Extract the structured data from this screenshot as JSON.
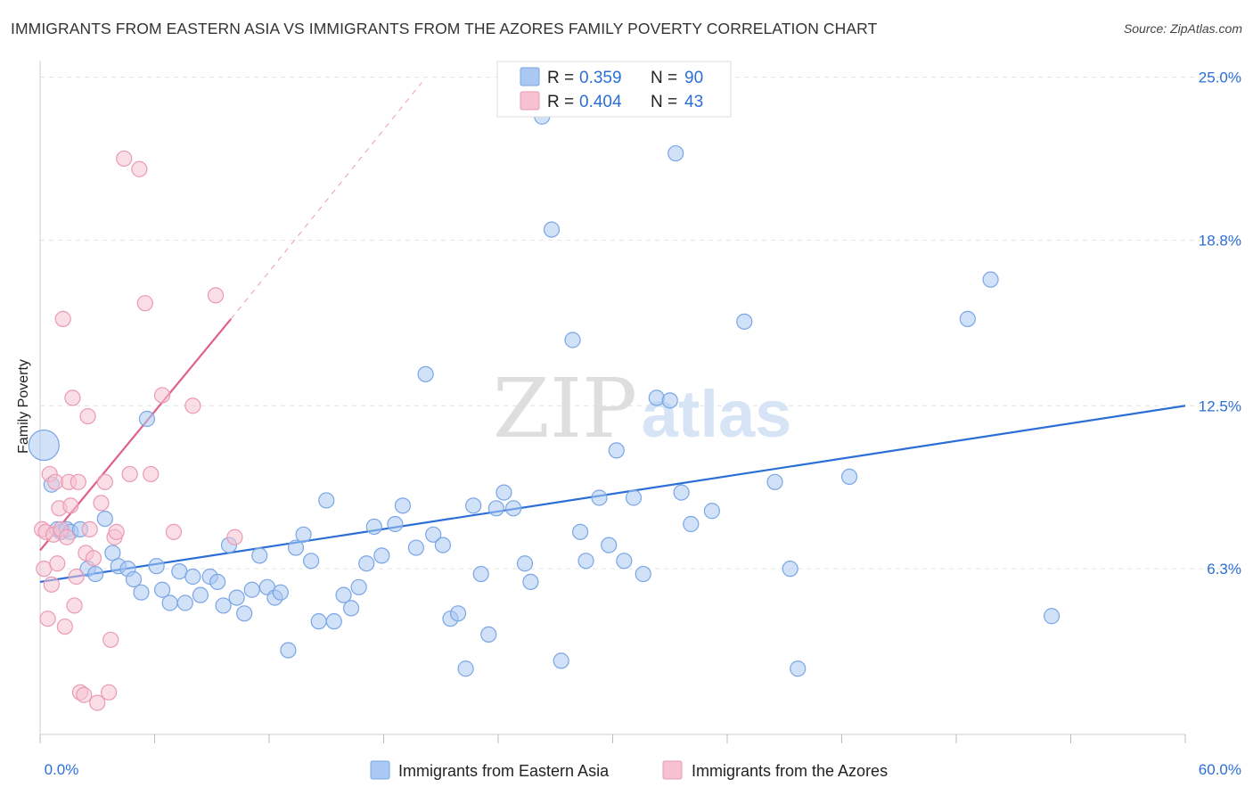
{
  "header": {
    "title": "IMMIGRANTS FROM EASTERN ASIA VS IMMIGRANTS FROM THE AZORES FAMILY POVERTY CORRELATION CHART",
    "source": "Source: ZipAtlas.com"
  },
  "watermark": {
    "zip": "ZIP",
    "atlas": "atlas"
  },
  "chart_data": {
    "type": "scatter",
    "title": "IMMIGRANTS FROM EASTERN ASIA VS IMMIGRANTS FROM THE AZORES FAMILY POVERTY CORRELATION CHART",
    "xlabel": "",
    "ylabel": "Family Poverty",
    "xlim": [
      0,
      60
    ],
    "ylim": [
      0,
      26
    ],
    "x_tick_labels": [
      "0.0%",
      "60.0%"
    ],
    "y_ticks": [
      6.3,
      12.5,
      18.8,
      25.0
    ],
    "y_tick_labels": [
      "6.3%",
      "12.5%",
      "18.8%",
      "25.0%"
    ],
    "grid": "horizontal dashed",
    "legend_position": "top-center",
    "stats": [
      {
        "r_label": "R =",
        "r_value": "0.359",
        "n_label": "N =",
        "n_value": "90"
      },
      {
        "r_label": "R =",
        "r_value": "0.404",
        "n_label": "N =",
        "n_value": "43"
      }
    ],
    "series": [
      {
        "name": "Immigrants from Eastern Asia",
        "color": "#7aa6e6",
        "fill": "#aac8f2",
        "trend_color": "#2b6fd6",
        "trend": {
          "x0": 0,
          "y0": 5.8,
          "x1": 60,
          "y1": 12.5
        },
        "points": [
          [
            0.2,
            11.0
          ],
          [
            0.6,
            9.5
          ],
          [
            0.9,
            7.8
          ],
          [
            1.1,
            7.7
          ],
          [
            1.4,
            7.8
          ],
          [
            1.6,
            7.7
          ],
          [
            2.1,
            7.8
          ],
          [
            2.5,
            6.3
          ],
          [
            2.9,
            6.1
          ],
          [
            3.4,
            8.2
          ],
          [
            3.8,
            6.9
          ],
          [
            4.1,
            6.4
          ],
          [
            4.6,
            6.3
          ],
          [
            4.9,
            5.9
          ],
          [
            5.3,
            5.4
          ],
          [
            5.6,
            12.0
          ],
          [
            6.1,
            6.4
          ],
          [
            6.4,
            5.5
          ],
          [
            6.8,
            5.0
          ],
          [
            7.3,
            6.2
          ],
          [
            7.6,
            5.0
          ],
          [
            8.0,
            6.0
          ],
          [
            8.4,
            5.3
          ],
          [
            8.9,
            6.0
          ],
          [
            9.3,
            5.8
          ],
          [
            9.6,
            4.9
          ],
          [
            9.9,
            7.2
          ],
          [
            10.3,
            5.2
          ],
          [
            10.7,
            4.6
          ],
          [
            11.1,
            5.5
          ],
          [
            11.5,
            6.8
          ],
          [
            11.9,
            5.6
          ],
          [
            12.3,
            5.2
          ],
          [
            12.6,
            5.4
          ],
          [
            13.0,
            3.2
          ],
          [
            13.4,
            7.1
          ],
          [
            13.8,
            7.6
          ],
          [
            14.2,
            6.6
          ],
          [
            14.6,
            4.3
          ],
          [
            15.0,
            8.9
          ],
          [
            15.4,
            4.3
          ],
          [
            15.9,
            5.3
          ],
          [
            16.3,
            4.8
          ],
          [
            16.7,
            5.6
          ],
          [
            17.1,
            6.5
          ],
          [
            17.5,
            7.9
          ],
          [
            17.9,
            6.8
          ],
          [
            18.6,
            8.0
          ],
          [
            19.0,
            8.7
          ],
          [
            19.7,
            7.1
          ],
          [
            20.2,
            13.7
          ],
          [
            20.6,
            7.6
          ],
          [
            21.1,
            7.2
          ],
          [
            21.5,
            4.4
          ],
          [
            21.9,
            4.6
          ],
          [
            22.3,
            2.5
          ],
          [
            22.7,
            8.7
          ],
          [
            23.1,
            6.1
          ],
          [
            23.5,
            3.8
          ],
          [
            23.9,
            8.6
          ],
          [
            24.3,
            9.2
          ],
          [
            24.8,
            8.6
          ],
          [
            25.4,
            6.5
          ],
          [
            25.7,
            5.8
          ],
          [
            26.3,
            23.5
          ],
          [
            26.8,
            19.2
          ],
          [
            27.3,
            2.8
          ],
          [
            27.9,
            15.0
          ],
          [
            28.3,
            7.7
          ],
          [
            28.6,
            6.6
          ],
          [
            29.3,
            9.0
          ],
          [
            29.8,
            7.2
          ],
          [
            30.2,
            10.8
          ],
          [
            30.6,
            6.6
          ],
          [
            31.1,
            9.0
          ],
          [
            31.6,
            6.1
          ],
          [
            32.3,
            12.8
          ],
          [
            33.0,
            12.7
          ],
          [
            33.3,
            22.1
          ],
          [
            33.6,
            9.2
          ],
          [
            34.1,
            8.0
          ],
          [
            35.2,
            8.5
          ],
          [
            36.9,
            15.7
          ],
          [
            38.5,
            9.6
          ],
          [
            39.3,
            6.3
          ],
          [
            39.7,
            2.5
          ],
          [
            42.4,
            9.8
          ],
          [
            48.6,
            15.8
          ],
          [
            49.8,
            17.3
          ],
          [
            53.0,
            4.5
          ]
        ]
      },
      {
        "name": "Immigrants from the Azores",
        "color": "#eb9ab3",
        "fill": "#f6c2d2",
        "trend_color": "#e0608c",
        "trend": {
          "x0": 0,
          "y0": 7.0,
          "x1": 10,
          "y1": 15.8
        },
        "trend_extension": {
          "x1": 20,
          "y1": 24.8
        },
        "points": [
          [
            0.1,
            7.8
          ],
          [
            0.2,
            6.3
          ],
          [
            0.3,
            7.7
          ],
          [
            0.4,
            4.4
          ],
          [
            0.5,
            9.9
          ],
          [
            0.6,
            5.7
          ],
          [
            0.7,
            7.6
          ],
          [
            0.8,
            9.6
          ],
          [
            0.9,
            6.5
          ],
          [
            1.0,
            8.6
          ],
          [
            1.1,
            7.8
          ],
          [
            1.2,
            15.8
          ],
          [
            1.3,
            4.1
          ],
          [
            1.4,
            7.5
          ],
          [
            1.5,
            9.6
          ],
          [
            1.6,
            8.7
          ],
          [
            1.7,
            12.8
          ],
          [
            1.8,
            4.9
          ],
          [
            1.9,
            6.0
          ],
          [
            2.0,
            9.6
          ],
          [
            2.1,
            1.6
          ],
          [
            2.3,
            1.5
          ],
          [
            2.4,
            6.9
          ],
          [
            2.5,
            12.1
          ],
          [
            2.6,
            7.8
          ],
          [
            2.8,
            6.7
          ],
          [
            3.0,
            1.2
          ],
          [
            3.2,
            8.8
          ],
          [
            3.4,
            9.6
          ],
          [
            3.6,
            1.6
          ],
          [
            3.7,
            3.6
          ],
          [
            3.9,
            7.5
          ],
          [
            4.0,
            7.7
          ],
          [
            4.4,
            21.9
          ],
          [
            4.7,
            9.9
          ],
          [
            5.2,
            21.5
          ],
          [
            5.5,
            16.4
          ],
          [
            5.8,
            9.9
          ],
          [
            6.4,
            12.9
          ],
          [
            7.0,
            7.7
          ],
          [
            8.0,
            12.5
          ],
          [
            9.2,
            16.7
          ],
          [
            10.2,
            7.5
          ]
        ]
      }
    ]
  }
}
